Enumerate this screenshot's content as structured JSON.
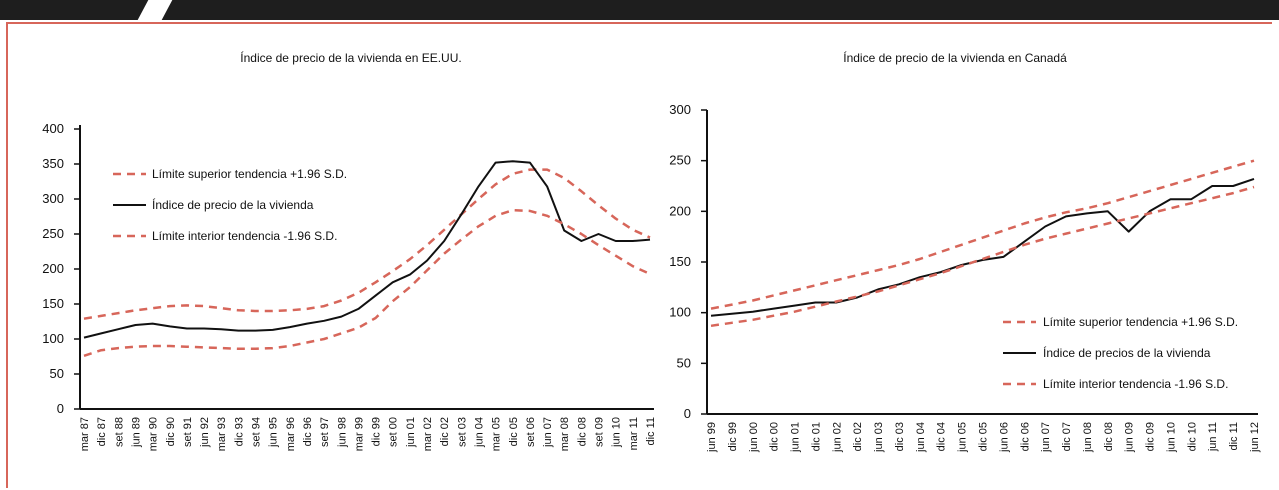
{
  "colors": {
    "trend": "#d7665a",
    "index": "#111111",
    "frame": "#d7665a",
    "topbar": "#1e1e1e"
  },
  "chart_data": [
    {
      "type": "line",
      "title": "Índice de precio de la vivienda en EE.UU.",
      "ylim": [
        0,
        400
      ],
      "yticks": [
        0,
        50,
        100,
        150,
        200,
        250,
        300,
        350,
        400
      ],
      "x_labels": [
        "mar 87",
        "dic 87",
        "set 88",
        "jun 89",
        "mar 90",
        "dic 90",
        "set 91",
        "jun 92",
        "mar 93",
        "dic 93",
        "set 94",
        "jun 95",
        "mar 96",
        "dic 96",
        "set 97",
        "jun 98",
        "mar 99",
        "dic 99",
        "set 00",
        "jun 01",
        "mar 02",
        "dic 02",
        "set 03",
        "jun 04",
        "mar 05",
        "dic 05",
        "set 06",
        "jun 07",
        "mar 08",
        "dic 08",
        "set 09",
        "jun 10",
        "mar 11",
        "dic 11"
      ],
      "legend_position": "top-left",
      "series": [
        {
          "name": "Límite superior tendencia +1.96 S.D.",
          "style": "dashed",
          "values": [
            129,
            133,
            137,
            141,
            144,
            147,
            148,
            147,
            144,
            141,
            140,
            140,
            141,
            143,
            147,
            155,
            166,
            181,
            197,
            214,
            234,
            256,
            278,
            300,
            321,
            336,
            342,
            342,
            330,
            311,
            291,
            272,
            256,
            245
          ]
        },
        {
          "name": "Índice de precio de la vivienda",
          "style": "solid",
          "values": [
            102,
            108,
            114,
            120,
            122,
            118,
            115,
            115,
            114,
            112,
            112,
            113,
            117,
            122,
            126,
            132,
            143,
            162,
            181,
            192,
            212,
            240,
            278,
            318,
            352,
            354,
            352,
            318,
            255,
            240,
            250,
            240,
            240,
            242
          ]
        },
        {
          "name": "Límite interior tendencia -1.96 S.D.",
          "style": "dashed",
          "values": [
            76,
            84,
            87,
            89,
            90,
            90,
            89,
            88,
            87,
            86,
            86,
            87,
            90,
            95,
            100,
            108,
            116,
            130,
            154,
            174,
            198,
            222,
            242,
            261,
            276,
            284,
            283,
            276,
            264,
            250,
            234,
            219,
            204,
            193
          ]
        }
      ]
    },
    {
      "type": "line",
      "title": "Índice de precio de la vivienda en Canadá",
      "ylim": [
        0,
        300
      ],
      "yticks": [
        0,
        50,
        100,
        150,
        200,
        250,
        300
      ],
      "x_labels": [
        "jun 99",
        "dic 99",
        "jun 00",
        "dic 00",
        "jun 01",
        "dic 01",
        "jun 02",
        "dic 02",
        "jun 03",
        "dic 03",
        "jun 04",
        "dic 04",
        "jun 05",
        "dic 05",
        "jun 06",
        "dic 06",
        "jun 07",
        "dic 07",
        "jun 08",
        "dic 08",
        "jun 09",
        "dic 09",
        "jun 10",
        "dic 10",
        "jun 11",
        "dic 11",
        "jun 12"
      ],
      "legend_position": "bottom-right",
      "series": [
        {
          "name": "Límite superior tendencia +1.96 S.D.",
          "style": "dashed",
          "values": [
            104,
            108,
            112,
            117,
            122,
            127,
            132,
            137,
            142,
            147,
            153,
            160,
            167,
            174,
            181,
            188,
            194,
            199,
            203,
            208,
            214,
            220,
            226,
            232,
            238,
            244,
            250
          ]
        },
        {
          "name": "Índice de precios de la vivienda",
          "style": "solid",
          "values": [
            97,
            99,
            101,
            104,
            107,
            110,
            110,
            115,
            123,
            128,
            135,
            140,
            147,
            152,
            155,
            170,
            185,
            195,
            198,
            200,
            180,
            200,
            212,
            212,
            225,
            225,
            232
          ]
        },
        {
          "name": "Límite interior tendencia -1.96 S.D.",
          "style": "dashed",
          "values": [
            87,
            90,
            93,
            97,
            101,
            106,
            111,
            116,
            121,
            127,
            133,
            139,
            146,
            153,
            160,
            167,
            173,
            178,
            183,
            188,
            193,
            198,
            203,
            208,
            213,
            218,
            224
          ]
        }
      ]
    }
  ]
}
